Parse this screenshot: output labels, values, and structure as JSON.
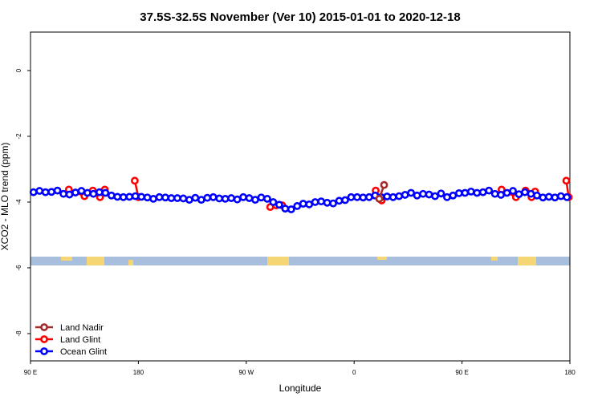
{
  "chart_data": {
    "type": "line",
    "title": "37.5S-32.5S November (Ver 10)   2015-01-01 to 2020-12-18",
    "x_label": "Longitude",
    "y_label": "XCO2 - MLO trend (ppm)",
    "xlim": [
      90,
      540
    ],
    "ylim": [
      -8.83,
      1.17
    ],
    "xticks": [
      {
        "value": 90,
        "label": "90 E"
      },
      180,
      {
        "value": 270,
        "label": "90 W"
      },
      {
        "value": 360,
        "label": "0"
      },
      {
        "value": 450,
        "label": "90 E"
      },
      {
        "value": 540,
        "label": "180"
      }
    ],
    "yticks": [
      0,
      -2,
      -4,
      -6,
      -8
    ],
    "legend": "bottom-left",
    "series": [
      {
        "name": "Land Nadir",
        "color": "#a52a2a",
        "x": [
          381,
          385
        ],
        "values": [
          -3.9,
          -3.48
        ]
      },
      {
        "name": "Land Glint",
        "color": "#ff0000",
        "x": [
          122,
          135,
          142,
          148,
          152,
          160,
          177,
          180,
          250,
          290,
          295,
          300,
          330,
          378,
          383,
          420,
          483,
          495,
          503,
          508,
          511,
          520,
          537,
          539
        ],
        "values": [
          -3.62,
          -3.82,
          -3.65,
          -3.85,
          -3.62,
          null,
          -3.35,
          -3.85,
          null,
          -4.15,
          -4.1,
          -4.1,
          null,
          -3.65,
          -3.95,
          null,
          -3.62,
          -3.85,
          -3.65,
          -3.85,
          -3.68,
          null,
          -3.35,
          -3.85
        ]
      },
      {
        "name": "Ocean Glint",
        "color": "#0000ff",
        "x": [
          92.5,
          97.5,
          102.5,
          107.5,
          112.5,
          117.5,
          122.5,
          127.5,
          132.5,
          137.5,
          142.5,
          147.5,
          152.5,
          157.5,
          162.5,
          167.5,
          172.5,
          177.5,
          182.5,
          187.5,
          192.5,
          197.5,
          202.5,
          207.5,
          212.5,
          217.5,
          222.5,
          227.5,
          232.5,
          237.5,
          242.5,
          247.5,
          252.5,
          257.5,
          262.5,
          267.5,
          272.5,
          277.5,
          282.5,
          287.5,
          292.5,
          297.5,
          302.5,
          307.5,
          312.5,
          317.5,
          322.5,
          327.5,
          332.5,
          337.5,
          342.5,
          347.5,
          352.5,
          357.5,
          362.5,
          367.5,
          372.5,
          377.5,
          382.5,
          387.5,
          392.5,
          397.5,
          402.5,
          407.5,
          412.5,
          417.5,
          422.5,
          427.5,
          432.5,
          437.5,
          442.5,
          447.5,
          452.5,
          457.5,
          462.5,
          467.5,
          472.5,
          477.5,
          482.5,
          487.5,
          492.5,
          497.5,
          502.5,
          507.5,
          512.5,
          517.5,
          522.5,
          527.5,
          532.5,
          537.5
        ],
        "values": [
          -3.7,
          -3.66,
          -3.7,
          -3.69,
          -3.65,
          -3.75,
          -3.77,
          -3.71,
          -3.66,
          -3.72,
          -3.75,
          -3.7,
          -3.72,
          -3.8,
          -3.84,
          -3.85,
          -3.84,
          -3.82,
          -3.84,
          -3.86,
          -3.9,
          -3.85,
          -3.86,
          -3.88,
          -3.88,
          -3.89,
          -3.93,
          -3.87,
          -3.93,
          -3.87,
          -3.85,
          -3.89,
          -3.9,
          -3.88,
          -3.92,
          -3.85,
          -3.88,
          -3.93,
          -3.86,
          -3.9,
          -4.0,
          -4.08,
          -4.2,
          -4.22,
          -4.12,
          -4.05,
          -4.07,
          -4.0,
          -3.98,
          -4.02,
          -4.04,
          -3.96,
          -3.94,
          -3.85,
          -3.85,
          -3.86,
          -3.85,
          -3.8,
          -3.85,
          -3.83,
          -3.85,
          -3.82,
          -3.78,
          -3.72,
          -3.8,
          -3.75,
          -3.77,
          -3.82,
          -3.74,
          -3.85,
          -3.8,
          -3.73,
          -3.72,
          -3.68,
          -3.72,
          -3.7,
          -3.65,
          -3.75,
          -3.78,
          -3.72,
          -3.66,
          -3.76,
          -3.7,
          -3.75,
          -3.8,
          -3.86,
          -3.84,
          -3.86,
          -3.82,
          -3.85
        ]
      }
    ]
  }
}
